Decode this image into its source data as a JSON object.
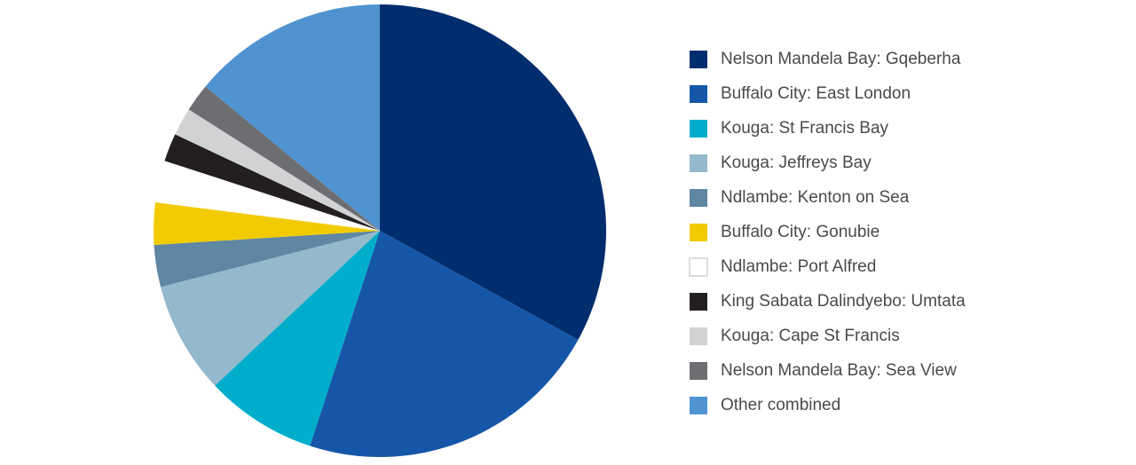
{
  "chart_data": {
    "type": "pie",
    "categories": [
      "Nelson Mandela Bay: Gqeberha",
      "Buffalo City: East London",
      "Kouga: St Francis Bay",
      "Kouga: Jeffreys Bay",
      "Ndlambe: Kenton on Sea",
      "Buffalo City: Gonubie",
      "Ndlambe: Port Alfred",
      "King Sabata Dalindyebo: Umtata",
      "Kouga: Cape St Francis",
      "Nelson Mandela Bay: Sea View",
      "Other combined"
    ],
    "values": [
      33,
      22,
      8,
      8,
      3,
      3,
      3,
      2,
      2,
      2,
      14
    ],
    "colors": [
      "#002d6e",
      "#1656a8",
      "#00aecb",
      "#94b8cc",
      "#5f86a3",
      "#f1cb00",
      "#ffffff",
      "#231f20",
      "#d1d2d3",
      "#6d6e71",
      "#4f93d0"
    ],
    "legend": "right"
  }
}
